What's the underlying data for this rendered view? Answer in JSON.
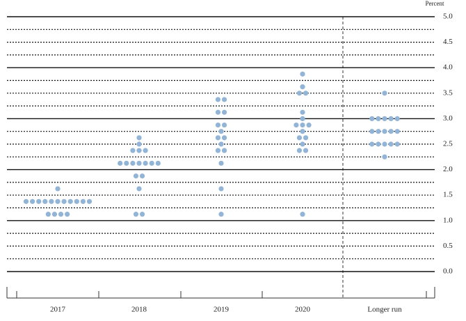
{
  "chart_data": {
    "type": "dot",
    "y_axis_label": "Percent",
    "categories": [
      "2017",
      "2018",
      "2019",
      "2020",
      "Longer run"
    ],
    "color": "#92b4d6",
    "ylim": [
      0,
      5
    ],
    "yticks": [
      {
        "value": 0,
        "label": "0.0"
      },
      {
        "value": 0.5,
        "label": "0.5"
      },
      {
        "value": 1,
        "label": "1.0"
      },
      {
        "value": 1.5,
        "label": "1.5"
      },
      {
        "value": 2,
        "label": "2.0"
      },
      {
        "value": 2.5,
        "label": "2.5"
      },
      {
        "value": 3,
        "label": "3.0"
      },
      {
        "value": 3.5,
        "label": "3.5"
      },
      {
        "value": 4,
        "label": "4.0"
      },
      {
        "value": 4.5,
        "label": "4.5"
      },
      {
        "value": 5,
        "label": "5.0"
      }
    ],
    "dots": [
      [
        {
          "value": 1.625,
          "count": 1
        },
        {
          "value": 1.375,
          "count": 11
        },
        {
          "value": 1.125,
          "count": 4
        }
      ],
      [
        {
          "value": 2.625,
          "count": 1
        },
        {
          "value": 2.5,
          "count": 1
        },
        {
          "value": 2.375,
          "count": 3
        },
        {
          "value": 2.125,
          "count": 7
        },
        {
          "value": 1.875,
          "count": 2
        },
        {
          "value": 1.625,
          "count": 1
        },
        {
          "value": 1.125,
          "count": 2
        }
      ],
      [
        {
          "value": 3.375,
          "count": 2
        },
        {
          "value": 3.125,
          "count": 2
        },
        {
          "value": 2.875,
          "count": 2
        },
        {
          "value": 2.75,
          "count": 1
        },
        {
          "value": 2.625,
          "count": 2
        },
        {
          "value": 2.5,
          "count": 1
        },
        {
          "value": 2.375,
          "count": 2
        },
        {
          "value": 2.125,
          "count": 1
        },
        {
          "value": 1.625,
          "count": 1
        },
        {
          "value": 1.125,
          "count": 1
        }
      ],
      [
        {
          "value": 3.875,
          "count": 1
        },
        {
          "value": 3.625,
          "count": 1
        },
        {
          "value": 3.5,
          "count": 2
        },
        {
          "value": 3.125,
          "count": 1
        },
        {
          "value": 3,
          "count": 1
        },
        {
          "value": 2.875,
          "count": 3
        },
        {
          "value": 2.75,
          "count": 1
        },
        {
          "value": 2.625,
          "count": 2
        },
        {
          "value": 2.5,
          "count": 1
        },
        {
          "value": 2.375,
          "count": 2
        },
        {
          "value": 1.125,
          "count": 1
        }
      ],
      [
        {
          "value": 3.5,
          "count": 1
        },
        {
          "value": 3,
          "count": 5
        },
        {
          "value": 2.75,
          "count": 5
        },
        {
          "value": 2.5,
          "count": 5
        },
        {
          "value": 2.25,
          "count": 1
        }
      ]
    ]
  }
}
